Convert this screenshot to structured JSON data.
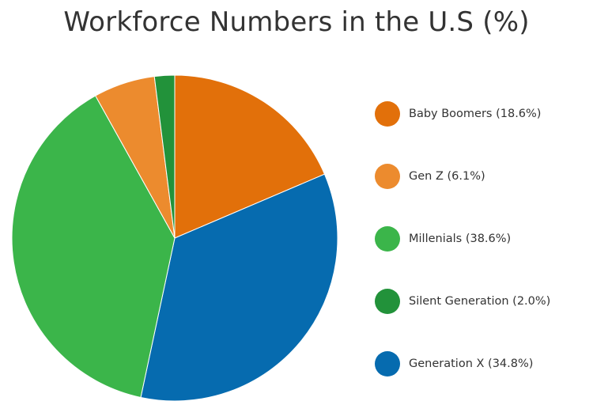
{
  "chart_data": {
    "type": "pie",
    "title": "Workforce Numbers in the U.S (%)",
    "legend_position": "right",
    "slices": [
      {
        "name": "Baby Boomers",
        "label": "Baby Boomers (18.6%)",
        "value": 18.6,
        "color": "#E2700A"
      },
      {
        "name": "Generation X",
        "label": "Generation X (34.8%)",
        "value": 34.8,
        "color": "#066BAF"
      },
      {
        "name": "Millenials",
        "label": "Millenials (38.6%)",
        "value": 38.6,
        "color": "#3BB54A"
      },
      {
        "name": "Gen Z",
        "label": "Gen Z (6.1%)",
        "value": 6.1,
        "color": "#EC8B2E"
      },
      {
        "name": "Silent Generation",
        "label": "Silent Generation (2.0%)",
        "value": 2.0,
        "color": "#22923A"
      }
    ],
    "legend": [
      {
        "label": "Baby Boomers (18.6%)",
        "color": "#E2700A"
      },
      {
        "label": "Gen Z (6.1%)",
        "color": "#EC8B2E"
      },
      {
        "label": "Millenials (38.6%)",
        "color": "#3BB54A"
      },
      {
        "label": "Silent Generation (2.0%)",
        "color": "#22923A"
      },
      {
        "label": "Generation X (34.8%)",
        "color": "#066BAF"
      }
    ]
  }
}
